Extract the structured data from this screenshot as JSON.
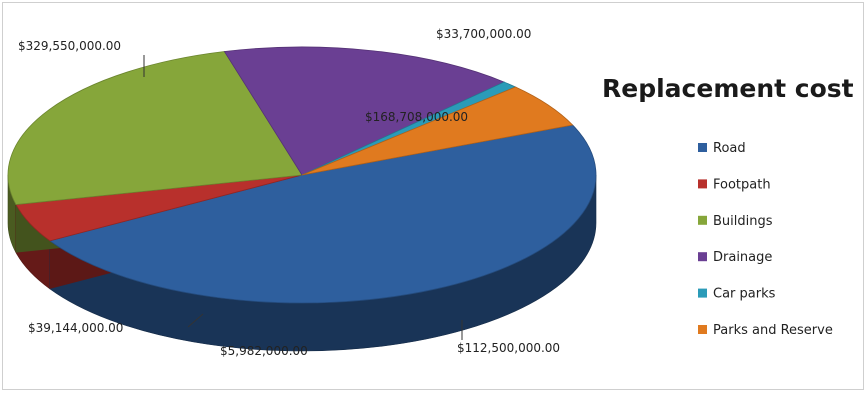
{
  "chart_data": {
    "type": "pie",
    "title": "Replacement cost",
    "categories": [
      "Road",
      "Footpath",
      "Buildings",
      "Drainage",
      "Car parks",
      "Parks and Reserve"
    ],
    "values": [
      329550000,
      33700000,
      168708000,
      112500000,
      5982000,
      39144000
    ],
    "data_labels": [
      "$329,550,000.00",
      "$33,700,000.00",
      "$168,708,000.00",
      "$112,500,000.00",
      "$5,982,000.00",
      "$39,144,000.00"
    ],
    "colors": [
      "#2e5f9e",
      "#b8302c",
      "#86a63a",
      "#6a3f93",
      "#2b9bb8",
      "#e07a1f"
    ],
    "style": "3d",
    "legend_position": "right"
  }
}
